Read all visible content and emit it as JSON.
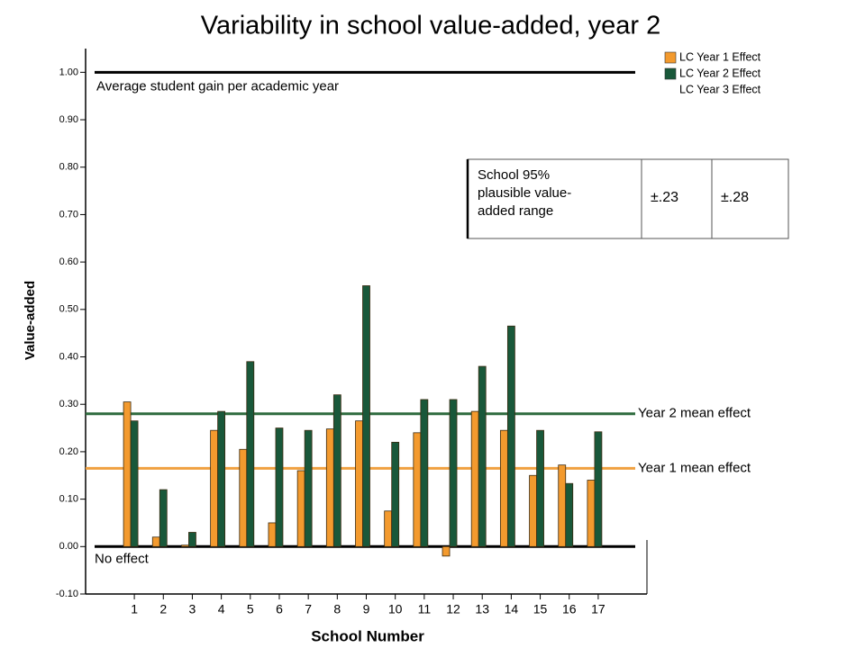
{
  "chart_data": {
    "type": "bar",
    "title": "Variability in school value-added, year 2",
    "x_label": "School Number",
    "y_label": "Value-added",
    "categories": [
      "1",
      "2",
      "3",
      "4",
      "5",
      "6",
      "7",
      "8",
      "9",
      "10",
      "11",
      "12",
      "13",
      "14",
      "15",
      "16",
      "17"
    ],
    "series": [
      {
        "name": "LC Year 1 Effect",
        "color": "#f39a2e",
        "values": [
          0.305,
          0.02,
          0.003,
          0.245,
          0.205,
          0.05,
          0.16,
          0.248,
          0.265,
          0.075,
          0.24,
          -0.02,
          0.285,
          0.245,
          0.15,
          0.172,
          0.14
        ]
      },
      {
        "name": "LC Year 2 Effect",
        "color": "#19583a",
        "values": [
          0.265,
          0.12,
          0.03,
          0.285,
          0.39,
          0.25,
          0.245,
          0.32,
          0.55,
          0.22,
          0.31,
          0.31,
          0.38,
          0.465,
          0.245,
          0.133,
          0.242
        ]
      },
      {
        "name": "LC Year 3 Effect",
        "values": [
          null,
          null,
          null,
          null,
          null,
          null,
          null,
          null,
          null,
          null,
          null,
          null,
          null,
          null,
          null,
          null,
          null
        ]
      }
    ],
    "ylim": [
      -0.1,
      1.05
    ],
    "yticks": [
      {
        "value": -0.1,
        "label": "-0.10"
      },
      {
        "value": 0,
        "label": "0.00"
      },
      {
        "value": 0.1,
        "label": "0.10"
      },
      {
        "value": 0.2,
        "label": "0.20"
      },
      {
        "value": 0.3,
        "label": "0.30"
      },
      {
        "value": 0.4,
        "label": "0.40"
      },
      {
        "value": 0.5,
        "label": "0.50"
      },
      {
        "value": 0.6,
        "label": "0.60"
      },
      {
        "value": 0.7,
        "label": "0.70"
      },
      {
        "value": 0.8,
        "label": "0.80"
      },
      {
        "value": 0.9,
        "label": "0.90"
      },
      {
        "value": 1,
        "label": "1.00"
      }
    ],
    "reference_lines": [
      {
        "label": "Average student gain per academic year",
        "value": 1.0,
        "color": "#000000"
      },
      {
        "label": "Year 2 mean effect",
        "value": 0.28,
        "color": "#2e6b3e"
      },
      {
        "label": "Year 1 mean effect",
        "value": 0.165,
        "color": "#f0a040"
      },
      {
        "label": "No effect",
        "value": 0,
        "color": "#000000"
      }
    ],
    "annotation_table": {
      "label": "School 95% plausible value-added range",
      "cells": [
        "±.23",
        "±.28"
      ]
    }
  }
}
